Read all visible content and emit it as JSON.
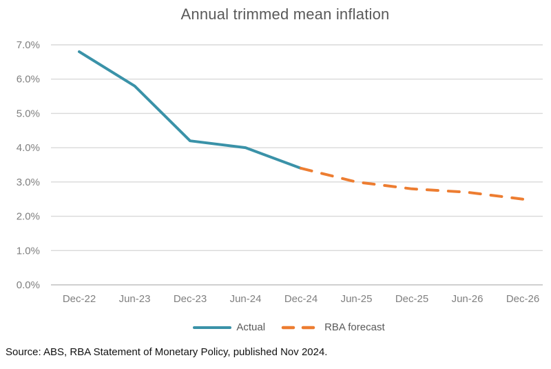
{
  "title": "Annual trimmed mean inflation",
  "source": "Source: ABS, RBA Statement of Monetary Policy, published Nov 2024.",
  "legend": [
    {
      "label": "Actual",
      "color": "#3a92a8",
      "style": "solid"
    },
    {
      "label": "RBA forecast",
      "color": "#ed7d31",
      "style": "dashed"
    }
  ],
  "colors": {
    "actual_line": "#3a92a8",
    "forecast_line": "#ed7d31",
    "title_text": "#595959",
    "axis_label_text": "#7f7f7f",
    "gridline": "#d9d9d9",
    "axis_line": "#bfbfbf",
    "source_text": "#111111"
  },
  "chart_data": {
    "type": "line",
    "title": "Annual trimmed mean inflation",
    "categories": [
      "Dec-22",
      "Jun-23",
      "Dec-23",
      "Jun-24",
      "Dec-24",
      "Jun-25",
      "Dec-25",
      "Jun-26",
      "Dec-26"
    ],
    "series": [
      {
        "name": "Actual",
        "style": "solid",
        "color": "#3a92a8",
        "x": [
          "Dec-22",
          "Jun-23",
          "Dec-23",
          "Jun-24",
          "Dec-24"
        ],
        "values": [
          6.8,
          5.8,
          4.2,
          4.0,
          3.4
        ]
      },
      {
        "name": "RBA forecast",
        "style": "dashed",
        "color": "#ed7d31",
        "x": [
          "Dec-24",
          "Jun-25",
          "Dec-25",
          "Jun-26",
          "Dec-26"
        ],
        "values": [
          3.4,
          3.0,
          2.8,
          2.7,
          2.5
        ]
      }
    ],
    "xlabel": "",
    "ylabel": "",
    "ylim": [
      0,
      7
    ],
    "yticks": [
      "0.0%",
      "1.0%",
      "2.0%",
      "3.0%",
      "4.0%",
      "5.0%",
      "6.0%",
      "7.0%"
    ],
    "grid": true,
    "legend_position": "bottom"
  }
}
